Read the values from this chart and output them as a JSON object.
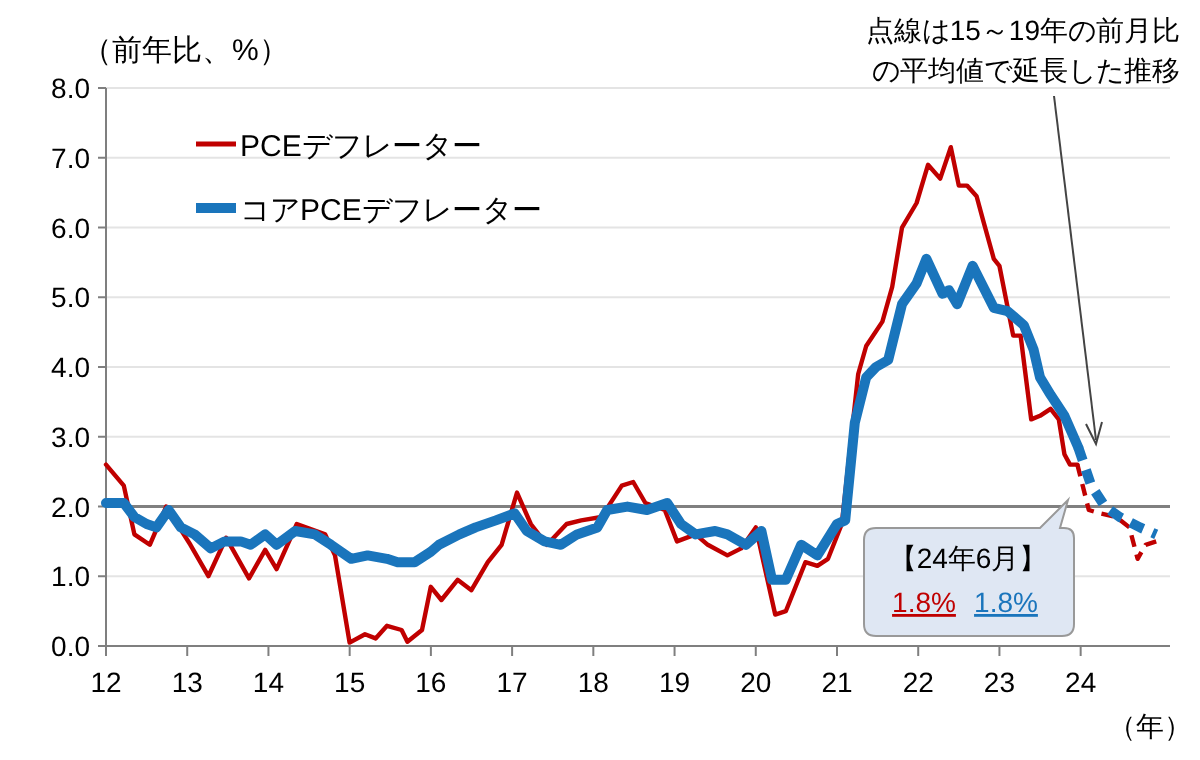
{
  "chart_data": {
    "type": "line",
    "ylabel": "（前年比、%）",
    "xlabel": "（年）",
    "xlim": [
      12,
      25.1
    ],
    "ylim": [
      0,
      8
    ],
    "xticks": [
      12,
      13,
      14,
      15,
      16,
      17,
      18,
      19,
      20,
      21,
      22,
      23,
      24
    ],
    "yticks": [
      {
        "value": 0,
        "label": "0.0"
      },
      {
        "value": 1,
        "label": "1.0"
      },
      {
        "value": 2,
        "label": "2.0"
      },
      {
        "value": 3,
        "label": "3.0"
      },
      {
        "value": 4,
        "label": "4.0"
      },
      {
        "value": 5,
        "label": "5.0"
      },
      {
        "value": 6,
        "label": "6.0"
      },
      {
        "value": 7,
        "label": "7.0"
      },
      {
        "value": 8,
        "label": "8.0"
      }
    ],
    "grid": "y",
    "legend": "top left",
    "ref_lines": [
      {
        "axis": "y",
        "value": 2,
        "color": "#808080"
      }
    ],
    "series": [
      {
        "name": "PCEデフレーター",
        "color": "#c00000",
        "line_style": "solid",
        "x": [
          12,
          12.22,
          12.35,
          12.54,
          12.74,
          13.04,
          13.26,
          13.48,
          13.76,
          13.96,
          14.1,
          14.35,
          14.7,
          14.82,
          15,
          15.19,
          15.32,
          15.46,
          15.64,
          15.71,
          15.89,
          16,
          16.13,
          16.33,
          16.5,
          16.7,
          16.87,
          17.06,
          17.23,
          17.43,
          17.67,
          17.85,
          18.1,
          18.35,
          18.49,
          18.64,
          18.88,
          19.03,
          19.26,
          19.41,
          19.65,
          19.82,
          20,
          20.24,
          20.37,
          20.61,
          20.76,
          20.89,
          21.06,
          21.26,
          21.36,
          21.56,
          21.68,
          21.8,
          21.98,
          22.12,
          22.27,
          22.4,
          22.5,
          22.6,
          22.72,
          22.8,
          22.93,
          23,
          23.17,
          23.26,
          23.39,
          23.5,
          23.63,
          23.73,
          23.8,
          23.87,
          23.96
        ],
        "values": [
          2.6,
          2.3,
          1.6,
          1.45,
          2.0,
          1.45,
          1.0,
          1.55,
          0.97,
          1.38,
          1.1,
          1.75,
          1.6,
          1.3,
          0.05,
          0.17,
          0.11,
          0.29,
          0.23,
          0.06,
          0.23,
          0.85,
          0.66,
          0.95,
          0.8,
          1.2,
          1.45,
          2.2,
          1.75,
          1.45,
          1.75,
          1.8,
          1.85,
          2.3,
          2.35,
          2.05,
          1.95,
          1.5,
          1.6,
          1.45,
          1.3,
          1.4,
          1.7,
          0.45,
          0.5,
          1.2,
          1.15,
          1.25,
          1.75,
          3.9,
          4.3,
          4.65,
          5.15,
          6.0,
          6.35,
          6.9,
          6.7,
          7.15,
          6.6,
          6.6,
          6.45,
          6.1,
          5.55,
          5.45,
          4.45,
          4.45,
          3.25,
          3.3,
          3.4,
          3.25,
          2.75,
          2.6,
          2.6
        ]
      },
      {
        "name": "コアPCEデフレーター",
        "color": "#1a75bc",
        "line_style": "solid",
        "x": [
          12,
          12.22,
          12.35,
          12.5,
          12.62,
          12.77,
          12.92,
          13.09,
          13.29,
          13.46,
          13.66,
          13.78,
          13.96,
          14.1,
          14.33,
          14.57,
          14.77,
          15.02,
          15.22,
          15.46,
          15.59,
          15.8,
          16,
          16.1,
          16.35,
          16.55,
          16.8,
          17.03,
          17.18,
          17.4,
          17.6,
          17.8,
          18.05,
          18.17,
          18.42,
          18.66,
          18.91,
          19.08,
          19.26,
          19.5,
          19.65,
          19.88,
          20.07,
          20.2,
          20.37,
          20.56,
          20.76,
          21,
          21.1,
          21.22,
          21.36,
          21.48,
          21.63,
          21.8,
          21.98,
          22.1,
          22.3,
          22.38,
          22.48,
          22.67,
          22.8,
          22.93,
          23.1,
          23.3,
          23.42,
          23.5,
          23.63,
          23.8,
          23.97
        ],
        "values": [
          2.05,
          2.05,
          1.85,
          1.75,
          1.7,
          1.95,
          1.7,
          1.6,
          1.4,
          1.5,
          1.5,
          1.45,
          1.6,
          1.45,
          1.65,
          1.6,
          1.45,
          1.25,
          1.3,
          1.25,
          1.2,
          1.2,
          1.35,
          1.45,
          1.6,
          1.7,
          1.8,
          1.9,
          1.65,
          1.5,
          1.45,
          1.6,
          1.7,
          1.95,
          2.0,
          1.95,
          2.05,
          1.75,
          1.6,
          1.65,
          1.6,
          1.45,
          1.65,
          0.95,
          0.95,
          1.45,
          1.3,
          1.75,
          1.8,
          3.2,
          3.85,
          4.0,
          4.1,
          4.9,
          5.2,
          5.55,
          5.05,
          5.1,
          4.9,
          5.45,
          5.15,
          4.85,
          4.8,
          4.6,
          4.25,
          3.85,
          3.6,
          3.3,
          2.85
        ]
      },
      {
        "color": "#c00000",
        "line_style": "dashed",
        "x": [
          23.96,
          24.1,
          24.24,
          24.44,
          24.6,
          24.7,
          24.8,
          24.93
        ],
        "values": [
          2.6,
          1.95,
          1.9,
          1.85,
          1.7,
          1.25,
          1.45,
          1.5
        ]
      },
      {
        "color": "#1a75bc",
        "line_style": "dashed",
        "x": [
          23.97,
          24.13,
          24.3,
          24.48,
          24.73,
          24.93
        ],
        "values": [
          2.85,
          2.3,
          2.0,
          1.85,
          1.7,
          1.6
        ]
      }
    ],
    "annotations": [
      "点線は15～19年の前月比の平均値で延長した推移",
      "【24年6月】",
      "1.8%",
      "1.8%"
    ]
  }
}
